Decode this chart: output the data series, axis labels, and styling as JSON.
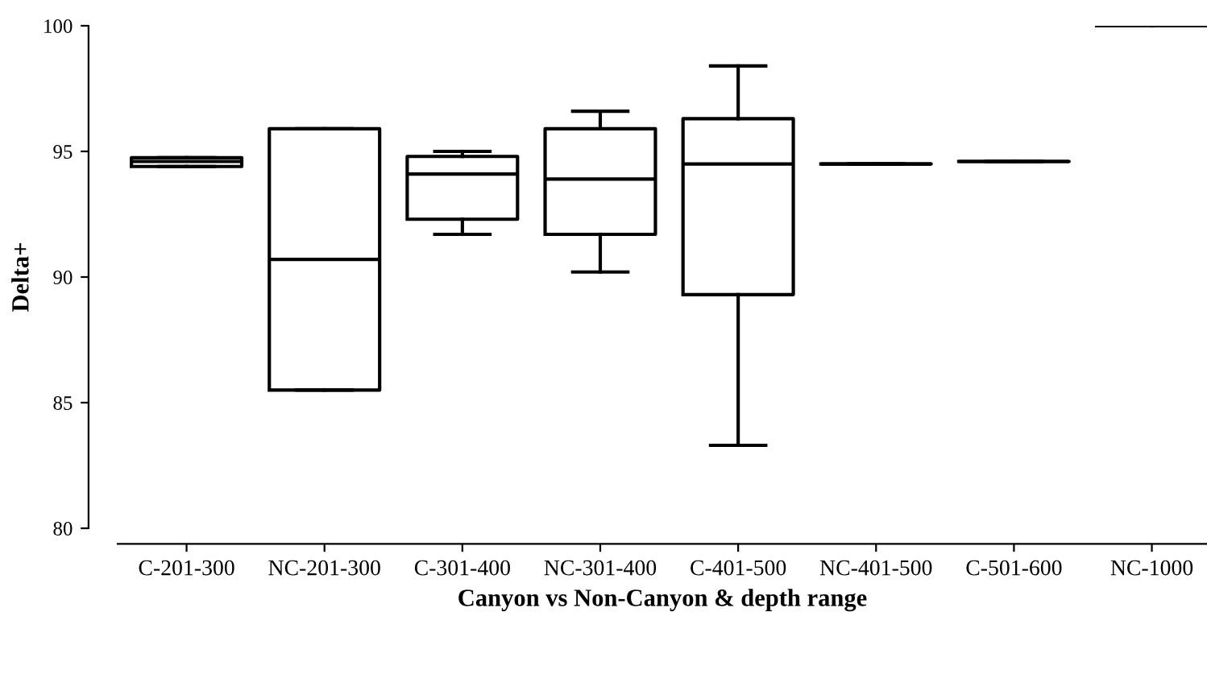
{
  "chart_data": {
    "type": "box",
    "xlabel": "Canyon vs Non-Canyon & depth range",
    "ylabel": "Delta+",
    "categories": [
      "C-201-300",
      "NC-201-300",
      "C-301-400",
      "NC-301-400",
      "C-401-500",
      "NC-401-500",
      "C-501-600",
      "NC-1000"
    ],
    "boxes": [
      {
        "low": 94.4,
        "q1": 94.4,
        "median": 94.6,
        "q3": 94.75,
        "high": 94.75
      },
      {
        "low": 85.5,
        "q1": 85.5,
        "median": 90.7,
        "q3": 95.9,
        "high": 95.9
      },
      {
        "low": 91.7,
        "q1": 92.3,
        "median": 94.1,
        "q3": 94.8,
        "high": 95.0
      },
      {
        "low": 90.2,
        "q1": 91.7,
        "median": 93.9,
        "q3": 95.9,
        "high": 96.6
      },
      {
        "low": 83.3,
        "q1": 89.3,
        "median": 94.5,
        "q3": 96.3,
        "high": 98.4
      },
      {
        "low": 94.5,
        "q1": 94.5,
        "median": 94.5,
        "q3": 94.5,
        "high": 94.5
      },
      {
        "low": 94.6,
        "q1": 94.6,
        "median": 94.6,
        "q3": 94.6,
        "high": 94.6
      },
      {
        "low": 100,
        "q1": 100,
        "median": 100,
        "q3": 100,
        "high": 100
      }
    ],
    "color": "#000000",
    "ylim": [
      80,
      100
    ],
    "yticks": [
      80,
      85,
      90,
      95,
      100
    ],
    "grid": false
  }
}
